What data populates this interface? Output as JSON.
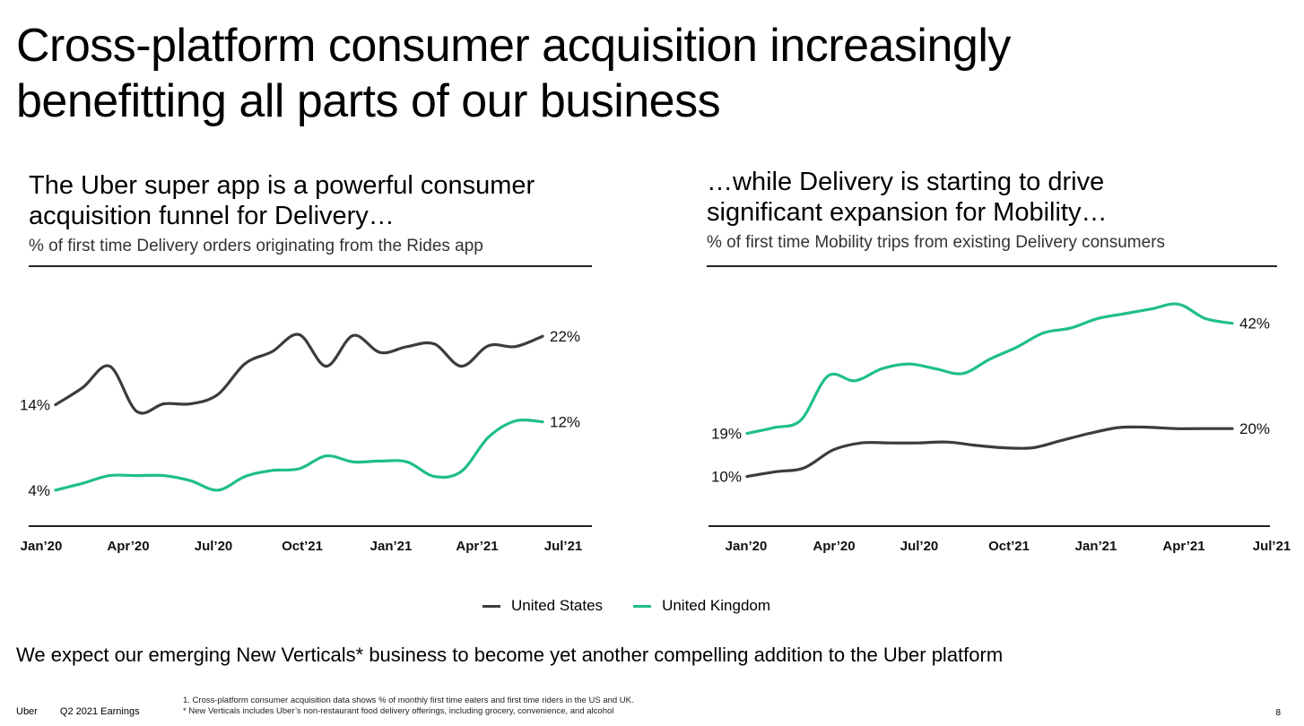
{
  "title_line1": "Cross-platform consumer acquisition increasingly",
  "title_line2": "benefitting all parts of our business",
  "legend": [
    {
      "name": "United States",
      "color": "#3c3c3c"
    },
    {
      "name": "United Kingdom",
      "color": "#1fbf86"
    }
  ],
  "bottom_text": "We expect our emerging New Verticals* business to become yet another compelling addition to the Uber platform",
  "footer": {
    "brand": "Uber",
    "report": "Q2 2021 Earnings",
    "note1": "1. Cross-platform consumer acquisition data shows % of monthly first time eaters and first time riders in the US and UK.",
    "note2": "* New Verticals includes Uber’s non-restaurant food delivery offerings, including grocery, convenience, and alcohol",
    "page": "8"
  },
  "chart_data": [
    {
      "type": "line",
      "title": "The Uber super app is a powerful consumer acquisition funnel for Delivery…",
      "title_line1": "The Uber super app is a powerful consumer",
      "title_line2": "acquisition funnel for Delivery…",
      "subtitle": "% of first time Delivery orders originating from the Rides app",
      "tick_labels": [
        "Jan’20",
        "Apr’20",
        "Jul’20",
        "Oct’21",
        "Jan’21",
        "Apr’21",
        "Jul’21"
      ],
      "ylim": [
        0,
        28
      ],
      "grid": false,
      "series": [
        {
          "name": "United States",
          "color": "#3c3c3c",
          "values": [
            14,
            16,
            18.5,
            13.2,
            14.1,
            14.1,
            15.2,
            18.8,
            20.2,
            22.2,
            18.5,
            22.1,
            20.1,
            20.8,
            21.1,
            18.5,
            20.9,
            20.8,
            22
          ],
          "start_label": "14%",
          "end_label": "22%"
        },
        {
          "name": "United Kingdom",
          "color": "#1fbf86",
          "values": [
            4,
            4.8,
            5.7,
            5.7,
            5.7,
            5.1,
            4,
            5.6,
            6.3,
            6.5,
            8,
            7.3,
            7.4,
            7.3,
            5.6,
            6.2,
            10.2,
            12.1,
            12
          ],
          "start_label": "4%",
          "end_label": "12%"
        }
      ]
    },
    {
      "type": "line",
      "title": "…while Delivery is starting to drive significant expansion for Mobility…",
      "title_line1": "…while Delivery is starting to drive",
      "title_line2": "significant expansion for Mobility…",
      "subtitle": "% of first time Mobility trips from existing Delivery consumers",
      "tick_labels": [
        "Jan’20",
        "Apr’20",
        "Jul’20",
        "Oct’21",
        "Jan’21",
        "Apr’21",
        "Jul’21"
      ],
      "ylim": [
        0,
        50
      ],
      "grid": false,
      "series": [
        {
          "name": "United States",
          "color": "#3c3c3c",
          "values": [
            10,
            11,
            11.8,
            15.5,
            17,
            17,
            17,
            17.2,
            16.5,
            16,
            16,
            17.5,
            19,
            20.2,
            20.3,
            20,
            20,
            20
          ],
          "start_label": "10%",
          "end_label": "20%"
        },
        {
          "name": "United Kingdom",
          "color": "#1fbf86",
          "values": [
            19,
            20.2,
            21.8,
            31,
            30,
            32.5,
            33.5,
            32.5,
            31.5,
            34.5,
            37,
            40,
            41,
            43,
            44,
            45,
            46,
            43,
            42
          ],
          "start_label": "19%",
          "end_label": "42%"
        }
      ]
    }
  ]
}
